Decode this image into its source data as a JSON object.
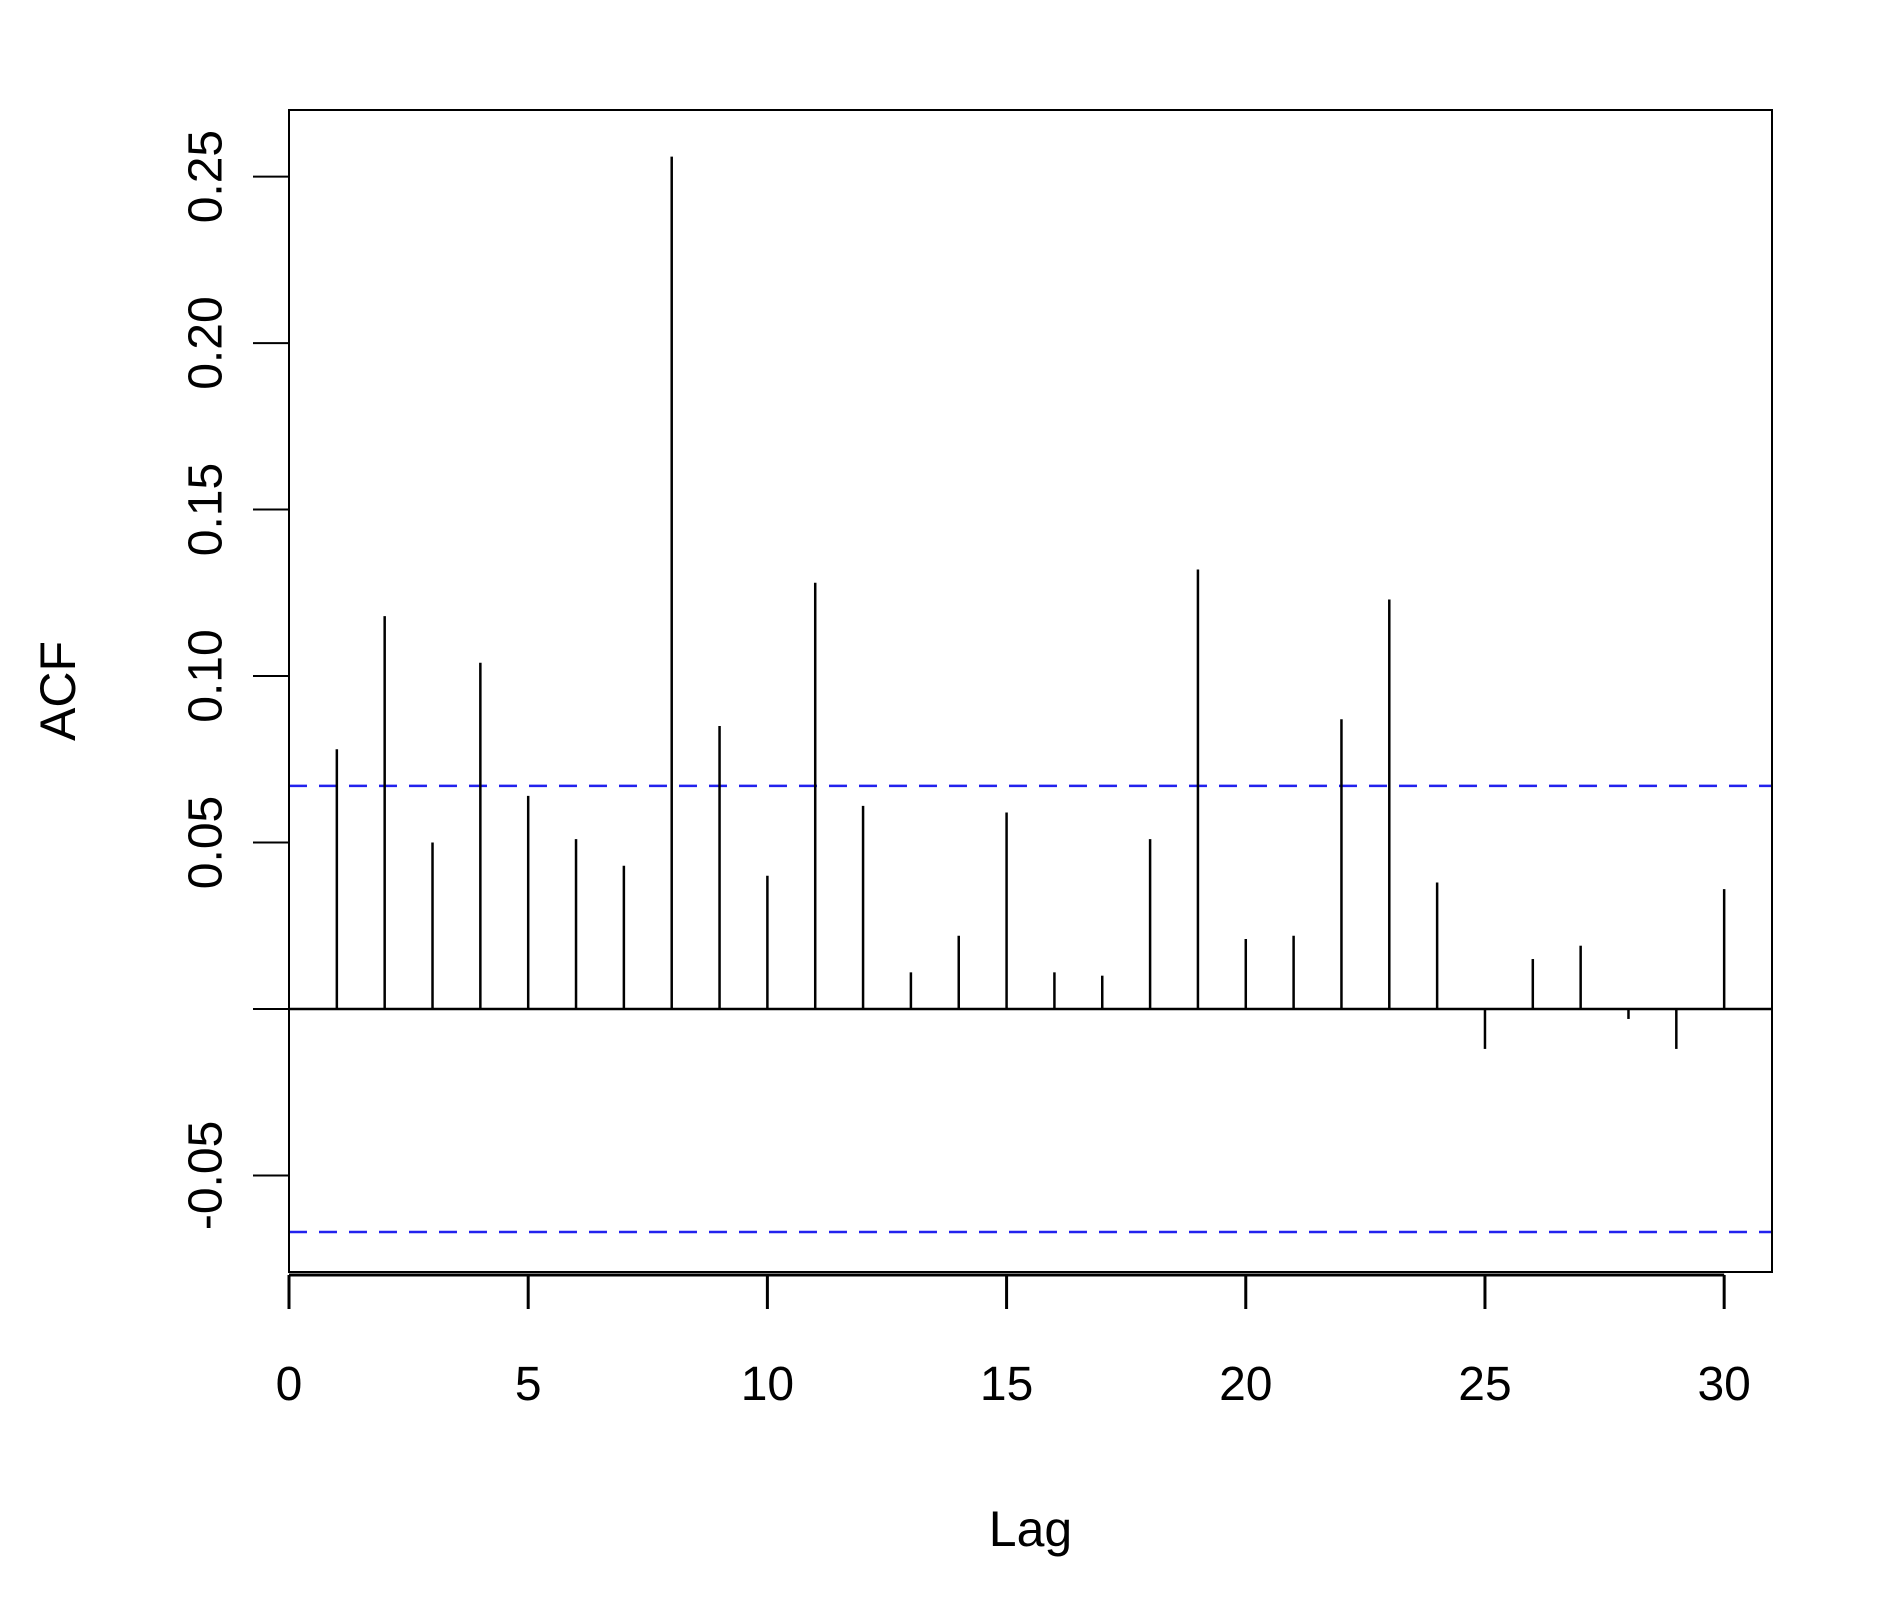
{
  "chart_data": {
    "type": "bar",
    "style": "acf-spike-plot",
    "xlabel": "Lag",
    "ylabel": "ACF",
    "xlim": [
      0,
      31
    ],
    "ylim": [
      -0.079,
      0.27
    ],
    "x_ticks": [
      0,
      5,
      10,
      15,
      20,
      25,
      30
    ],
    "x_tick_labels": [
      "0",
      "5",
      "10",
      "15",
      "20",
      "25",
      "30"
    ],
    "y_ticks": [
      -0.05,
      0.0,
      0.05,
      0.1,
      0.15,
      0.2,
      0.25
    ],
    "y_tick_labels": [
      "-0.05",
      "",
      "0.05",
      "0.10",
      "0.15",
      "0.20",
      "0.25"
    ],
    "grid": false,
    "lags": [
      1,
      2,
      3,
      4,
      5,
      6,
      7,
      8,
      9,
      10,
      11,
      12,
      13,
      14,
      15,
      16,
      17,
      18,
      19,
      20,
      21,
      22,
      23,
      24,
      25,
      26,
      27,
      28,
      29,
      30
    ],
    "acf": [
      0.078,
      0.118,
      0.05,
      0.104,
      0.064,
      0.051,
      0.043,
      0.256,
      0.085,
      0.04,
      0.128,
      0.061,
      0.011,
      0.022,
      0.059,
      0.011,
      0.01,
      0.051,
      0.132,
      0.021,
      0.022,
      0.087,
      0.123,
      0.038,
      -0.012,
      0.015,
      0.019,
      -0.003,
      -0.012,
      0.036
    ],
    "confidence_bounds": [
      0.067,
      -0.067
    ],
    "colors": {
      "spikes": "#000000",
      "zero_line": "#000000",
      "confidence": "#2222ee",
      "frame": "#000000"
    }
  }
}
